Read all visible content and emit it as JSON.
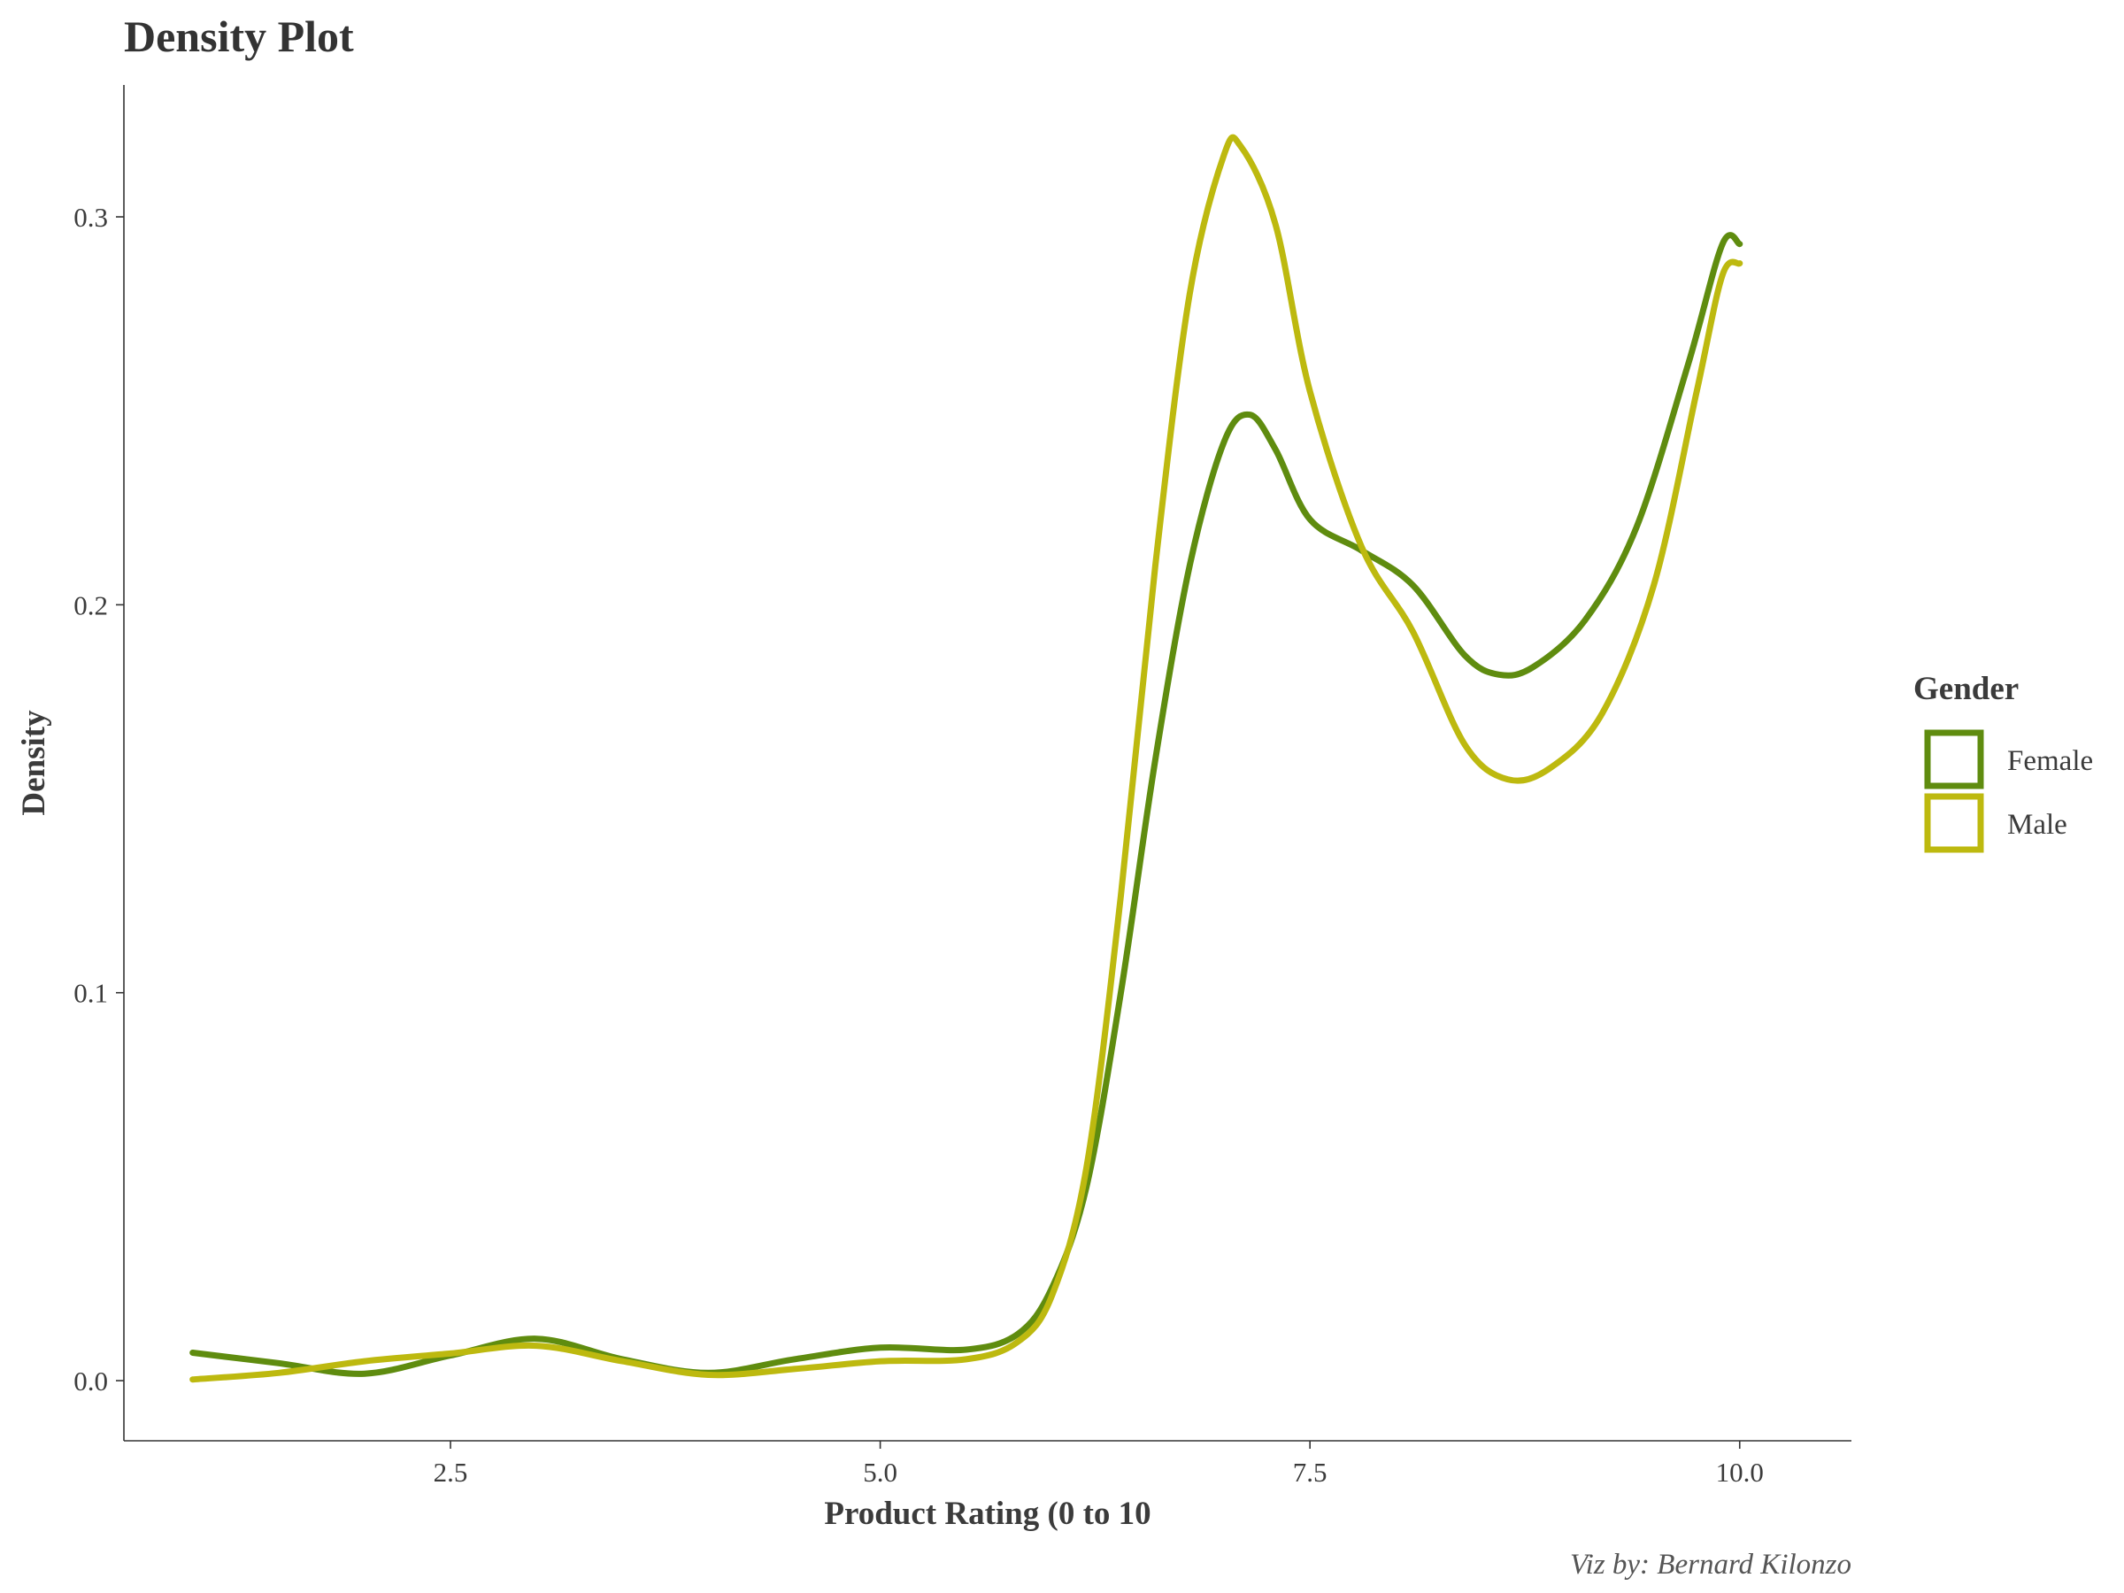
{
  "chart_data": {
    "type": "line",
    "title": "Density Plot",
    "xlabel": "Product Rating (0 to 10",
    "ylabel": "Density",
    "caption": "Viz by: Bernard Kilonzo",
    "xlim": [
      0.6,
      10.65
    ],
    "ylim": [
      -0.0155,
      0.334
    ],
    "x_ticks": [
      {
        "value": 2.5,
        "label": "2.5"
      },
      {
        "value": 5.0,
        "label": "5.0"
      },
      {
        "value": 7.5,
        "label": "7.5"
      },
      {
        "value": 10.0,
        "label": "10.0"
      }
    ],
    "y_ticks": [
      {
        "value": 0.0,
        "label": "0.0"
      },
      {
        "value": 0.1,
        "label": "0.1"
      },
      {
        "value": 0.2,
        "label": "0.2"
      },
      {
        "value": 0.3,
        "label": "0.3"
      }
    ],
    "grid": false,
    "legend": {
      "title": "Gender",
      "position": "right"
    },
    "series": [
      {
        "name": "Female",
        "color": "#5f8c0f",
        "points": [
          [
            1.0,
            0.0072
          ],
          [
            1.5,
            0.0045
          ],
          [
            2.0,
            0.0018
          ],
          [
            2.5,
            0.0065
          ],
          [
            3.0,
            0.0108
          ],
          [
            3.5,
            0.0055
          ],
          [
            4.0,
            0.002
          ],
          [
            4.5,
            0.0055
          ],
          [
            5.0,
            0.0085
          ],
          [
            5.5,
            0.008
          ],
          [
            5.8,
            0.012
          ],
          [
            6.0,
            0.024
          ],
          [
            6.2,
            0.05
          ],
          [
            6.4,
            0.1
          ],
          [
            6.6,
            0.16
          ],
          [
            6.8,
            0.21
          ],
          [
            7.0,
            0.242
          ],
          [
            7.15,
            0.249
          ],
          [
            7.3,
            0.24
          ],
          [
            7.5,
            0.222
          ],
          [
            7.8,
            0.214
          ],
          [
            8.1,
            0.205
          ],
          [
            8.4,
            0.187
          ],
          [
            8.6,
            0.182
          ],
          [
            8.8,
            0.184
          ],
          [
            9.1,
            0.196
          ],
          [
            9.4,
            0.22
          ],
          [
            9.7,
            0.262
          ],
          [
            9.9,
            0.293
          ],
          [
            10.0,
            0.293
          ]
        ]
      },
      {
        "name": "Male",
        "color": "#bdb90f",
        "points": [
          [
            1.0,
            0.0003
          ],
          [
            1.5,
            0.002
          ],
          [
            2.0,
            0.005
          ],
          [
            2.5,
            0.007
          ],
          [
            3.0,
            0.009
          ],
          [
            3.5,
            0.005
          ],
          [
            4.0,
            0.0015
          ],
          [
            4.5,
            0.003
          ],
          [
            5.0,
            0.005
          ],
          [
            5.5,
            0.0055
          ],
          [
            5.8,
            0.01
          ],
          [
            6.0,
            0.022
          ],
          [
            6.2,
            0.055
          ],
          [
            6.4,
            0.125
          ],
          [
            6.6,
            0.21
          ],
          [
            6.8,
            0.28
          ],
          [
            7.0,
            0.316
          ],
          [
            7.1,
            0.318
          ],
          [
            7.3,
            0.298
          ],
          [
            7.5,
            0.255
          ],
          [
            7.8,
            0.215
          ],
          [
            8.1,
            0.193
          ],
          [
            8.4,
            0.164
          ],
          [
            8.65,
            0.155
          ],
          [
            8.9,
            0.158
          ],
          [
            9.2,
            0.172
          ],
          [
            9.5,
            0.205
          ],
          [
            9.75,
            0.255
          ],
          [
            9.9,
            0.285
          ],
          [
            10.0,
            0.288
          ]
        ]
      }
    ]
  }
}
